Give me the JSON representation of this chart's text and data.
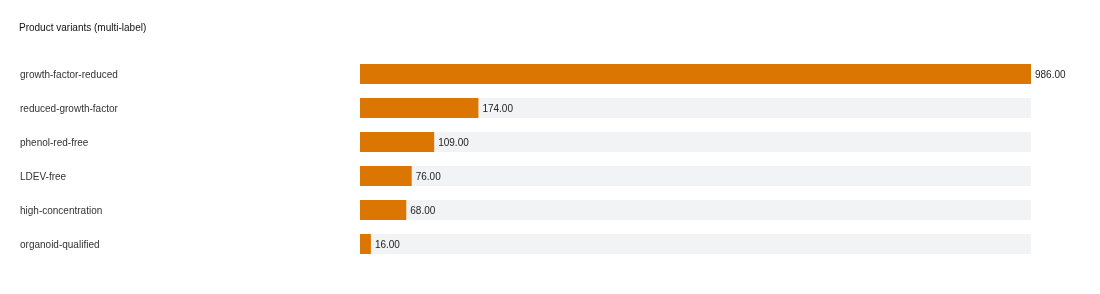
{
  "chart_data": {
    "type": "bar",
    "orientation": "horizontal",
    "title": "Product variants (multi-label)",
    "categories": [
      "growth-factor-reduced",
      "reduced-growth-factor",
      "phenol-red-free",
      "LDEV-free",
      "high-concentration",
      "organoid-qualified"
    ],
    "values": [
      986,
      174,
      109,
      76,
      68,
      16
    ],
    "value_labels": [
      "986.00",
      "174.00",
      "109.00",
      "76.00",
      "68.00",
      "16.00"
    ],
    "color": "#dc7602",
    "grid": false,
    "tick_labels": "y"
  }
}
